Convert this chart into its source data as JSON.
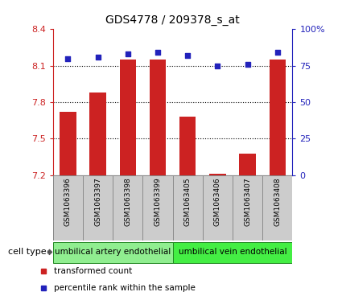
{
  "title": "GDS4778 / 209378_s_at",
  "samples": [
    "GSM1063396",
    "GSM1063397",
    "GSM1063398",
    "GSM1063399",
    "GSM1063405",
    "GSM1063406",
    "GSM1063407",
    "GSM1063408"
  ],
  "transformed_count": [
    7.72,
    7.88,
    8.15,
    8.15,
    7.68,
    7.21,
    7.38,
    8.15
  ],
  "percentile_rank": [
    80,
    81,
    83,
    84,
    82,
    75,
    76,
    84
  ],
  "ylim_left": [
    7.2,
    8.4
  ],
  "ylim_right": [
    0,
    100
  ],
  "yticks_left": [
    7.2,
    7.5,
    7.8,
    8.1,
    8.4
  ],
  "ytick_labels_left": [
    "7.2",
    "7.5",
    "7.8",
    "8.1",
    "8.4"
  ],
  "yticks_right": [
    0,
    25,
    50,
    75,
    100
  ],
  "ytick_labels_right": [
    "0",
    "25",
    "50",
    "75",
    "100%"
  ],
  "bar_color": "#cc2222",
  "dot_color": "#2222bb",
  "grid_color": "#000000",
  "bar_width": 0.55,
  "cell_type_groups": [
    {
      "label": "umbilical artery endothelial",
      "start": 0,
      "end": 3,
      "color": "#90ee90"
    },
    {
      "label": "umbilical vein endothelial",
      "start": 4,
      "end": 7,
      "color": "#44ee44"
    }
  ],
  "cell_type_label": "cell type",
  "legend_items": [
    {
      "label": "transformed count",
      "color": "#cc2222",
      "marker": "s"
    },
    {
      "label": "percentile rank within the sample",
      "color": "#2222bb",
      "marker": "s"
    }
  ],
  "bg_color": "#ffffff",
  "tick_area_color": "#cccccc",
  "grid_dotted_ticks": [
    7.5,
    7.8,
    8.1
  ]
}
